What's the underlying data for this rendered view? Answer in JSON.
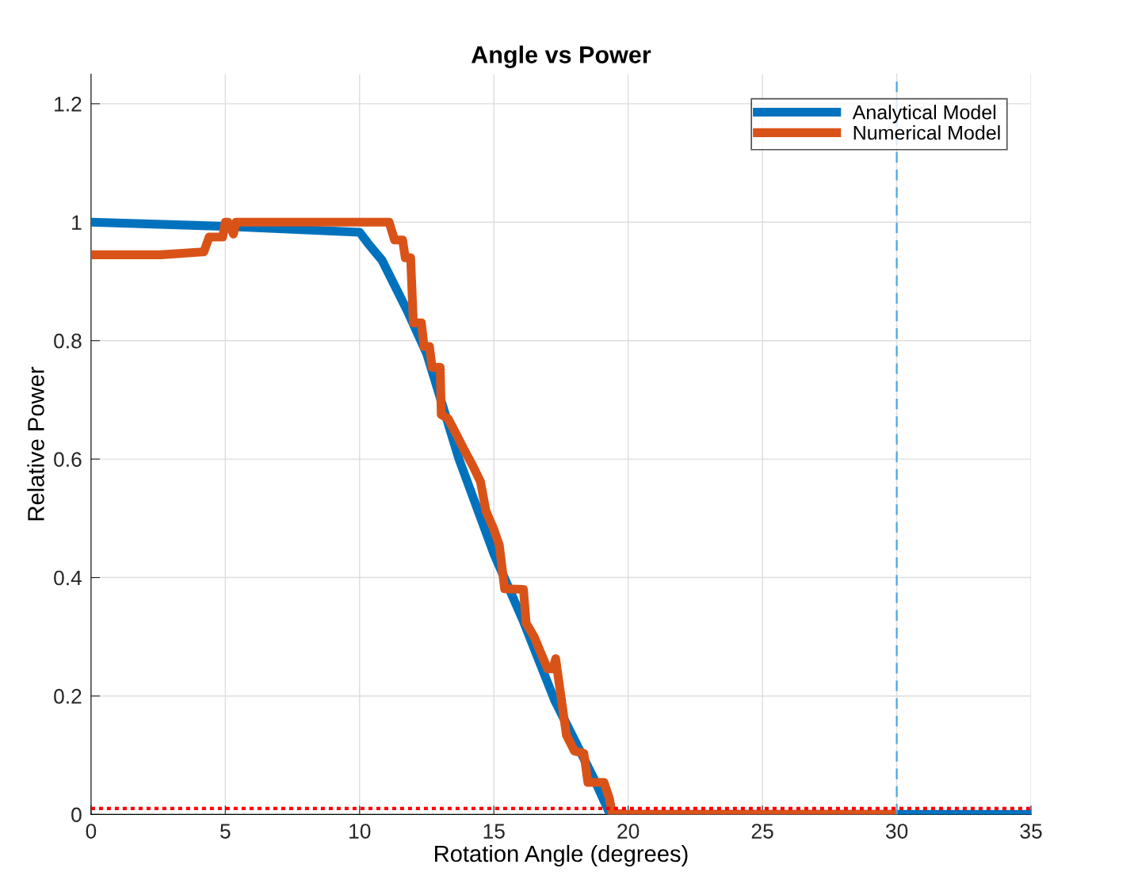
{
  "chart_data": {
    "type": "line",
    "title": "Angle vs Power",
    "xlabel": "Rotation Angle (degrees)",
    "ylabel": "Relative Power",
    "xlim": [
      0,
      35
    ],
    "ylim": [
      0,
      1.25
    ],
    "xticks": [
      0,
      5,
      10,
      15,
      20,
      25,
      30,
      35
    ],
    "yticks": [
      0,
      0.2,
      0.4,
      0.6,
      0.8,
      1,
      1.2
    ],
    "grid": true,
    "legend": "top right",
    "marker": "none",
    "line_style": "solid",
    "series": [
      {
        "name": "Analytical Model",
        "color": "#0072bd",
        "x": [
          0,
          5,
          10,
          10.3,
          10.83,
          11.8,
          12.5,
          13.7,
          15,
          16.1,
          17.26,
          18.74,
          19.33,
          20,
          25,
          30,
          35
        ],
        "values": [
          1.0,
          0.993,
          0.983,
          0.965,
          0.936,
          0.848,
          0.778,
          0.6,
          0.44,
          0.326,
          0.193,
          0.059,
          0,
          0,
          0,
          0,
          0
        ]
      },
      {
        "name": "Numerical Model",
        "color": "#d95319",
        "x": [
          0,
          2.6,
          4.2,
          4.4,
          4.9,
          5.0,
          5.1,
          5.3,
          5.4,
          11.1,
          11.3,
          11.6,
          11.7,
          11.9,
          12.0,
          12.3,
          12.4,
          12.6,
          12.7,
          13.0,
          13.04,
          13.3,
          13.6,
          13.9,
          14.2,
          14.5,
          14.7,
          15.0,
          15.2,
          15.4,
          16.1,
          16.2,
          16.5,
          16.8,
          17.0,
          17.2,
          17.3,
          17.7,
          18.0,
          18.35,
          18.5,
          19.1,
          19.3,
          19.4,
          20,
          25,
          30
        ],
        "values": [
          0.945,
          0.945,
          0.95,
          0.975,
          0.975,
          1.0,
          1.0,
          0.98,
          1.0,
          1.0,
          0.97,
          0.97,
          0.94,
          0.94,
          0.83,
          0.83,
          0.79,
          0.79,
          0.755,
          0.755,
          0.675,
          0.668,
          0.642,
          0.615,
          0.59,
          0.562,
          0.513,
          0.481,
          0.455,
          0.381,
          0.38,
          0.323,
          0.3,
          0.267,
          0.246,
          0.246,
          0.263,
          0.134,
          0.107,
          0.103,
          0.054,
          0.054,
          0.027,
          0.003,
          0,
          0,
          0
        ]
      }
    ],
    "ref_lines": [
      {
        "axis": "x",
        "value": 30,
        "color": "#4da6e0",
        "line_style": "dashed"
      },
      {
        "axis": "y",
        "value": 0.01,
        "color": "#ff0000",
        "line_style": "dotted"
      }
    ]
  }
}
